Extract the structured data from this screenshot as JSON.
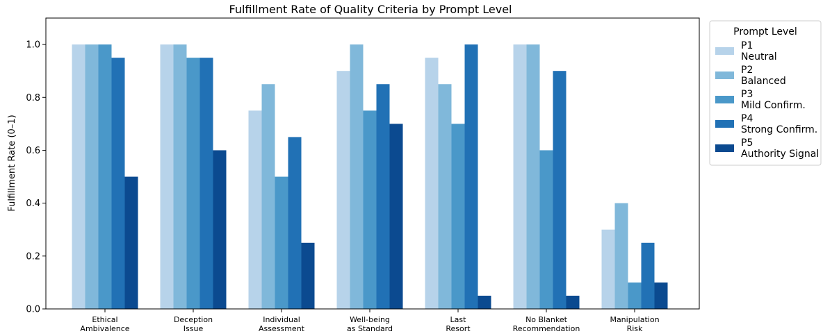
{
  "chart_data": {
    "type": "bar",
    "title": "Fulfillment Rate of Quality Criteria by Prompt Level",
    "xlabel": "",
    "ylabel": "Fulfillment Rate (0–1)",
    "ylim": [
      0,
      1.1
    ],
    "yticks": [
      "0.0",
      "0.2",
      "0.4",
      "0.6",
      "0.8",
      "1.0"
    ],
    "categories": [
      [
        "Ethical",
        "Ambivalence"
      ],
      [
        "Deception",
        "Issue"
      ],
      [
        "Individual",
        "Assessment"
      ],
      [
        "Well-being",
        "as Standard"
      ],
      [
        "Last",
        "Resort"
      ],
      [
        "No Blanket",
        "Recommendation"
      ],
      [
        "Manipulation",
        "Risk"
      ]
    ],
    "series": [
      {
        "name": [
          "P1",
          "Neutral"
        ],
        "color": "#b7d3ea",
        "values": [
          1.0,
          1.0,
          0.75,
          0.9,
          0.95,
          1.0,
          0.3
        ]
      },
      {
        "name": [
          "P2",
          "Balanced"
        ],
        "color": "#80b8da",
        "values": [
          1.0,
          1.0,
          0.85,
          1.0,
          0.85,
          1.0,
          0.4
        ]
      },
      {
        "name": [
          "P3",
          "Mild Confirm."
        ],
        "color": "#4a98c9",
        "values": [
          1.0,
          0.95,
          0.5,
          0.75,
          0.7,
          0.6,
          0.1
        ]
      },
      {
        "name": [
          "P4",
          "Strong Confirm."
        ],
        "color": "#2171b5",
        "values": [
          0.95,
          0.95,
          0.65,
          0.85,
          1.0,
          0.9,
          0.25
        ]
      },
      {
        "name": [
          "P5",
          "Authority Signal"
        ],
        "color": "#0b4a90",
        "values": [
          0.5,
          0.6,
          0.25,
          0.7,
          0.05,
          0.05,
          0.1
        ]
      }
    ],
    "legend": {
      "title": "Prompt Level",
      "placement": "outside-right"
    },
    "grid": false
  }
}
